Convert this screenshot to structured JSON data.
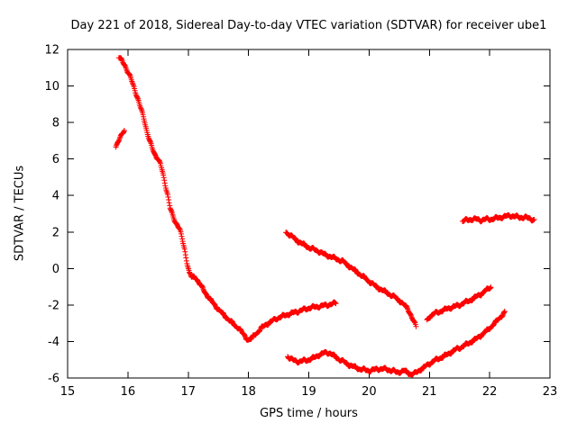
{
  "chart_data": {
    "type": "scatter",
    "marker": "plus",
    "color": "#ff0000",
    "title": "Day 221 of 2018, Sidereal Day-to-day VTEC variation (SDTVAR) for receiver ube1",
    "xlabel": "GPS time / hours",
    "ylabel": "SDTVAR / TECUs",
    "xlim": [
      15,
      23
    ],
    "ylim": [
      -6,
      12
    ],
    "xticks": [
      15,
      16,
      17,
      18,
      19,
      20,
      21,
      22,
      23
    ],
    "yticks": [
      -6,
      -4,
      -2,
      0,
      2,
      4,
      6,
      8,
      10,
      12
    ],
    "grid": false,
    "legend": "none",
    "series": [
      {
        "name": "detached-upper-arc",
        "points": [
          [
            15.8,
            6.7
          ],
          [
            15.84,
            6.95
          ],
          [
            15.88,
            7.2
          ],
          [
            15.91,
            7.4
          ],
          [
            15.94,
            7.6
          ]
        ]
      },
      {
        "name": "main-descent-arc",
        "points": [
          [
            15.85,
            11.55
          ],
          [
            15.9,
            11.4
          ],
          [
            15.95,
            11.15
          ],
          [
            16.0,
            10.75
          ],
          [
            16.05,
            10.4
          ],
          [
            16.1,
            9.95
          ],
          [
            16.15,
            9.45
          ],
          [
            16.2,
            8.9
          ],
          [
            16.25,
            8.4
          ],
          [
            16.28,
            8.05
          ],
          [
            16.32,
            7.45
          ],
          [
            16.36,
            7.0
          ],
          [
            16.4,
            6.6
          ],
          [
            16.45,
            6.25
          ],
          [
            16.5,
            6.0
          ],
          [
            16.54,
            5.7
          ],
          [
            16.58,
            5.2
          ],
          [
            16.62,
            4.6
          ],
          [
            16.66,
            4.05
          ],
          [
            16.7,
            3.3
          ],
          [
            16.74,
            2.9
          ],
          [
            16.78,
            2.6
          ],
          [
            16.82,
            2.4
          ],
          [
            16.86,
            2.15
          ],
          [
            16.9,
            1.6
          ],
          [
            16.94,
            1.05
          ],
          [
            16.98,
            0.35
          ],
          [
            17.02,
            -0.25
          ],
          [
            17.06,
            -0.5
          ],
          [
            17.1,
            -0.45
          ],
          [
            17.14,
            -0.55
          ],
          [
            17.18,
            -0.8
          ],
          [
            17.25,
            -1.15
          ],
          [
            17.32,
            -1.5
          ],
          [
            17.4,
            -1.85
          ],
          [
            17.48,
            -2.15
          ],
          [
            17.56,
            -2.45
          ],
          [
            17.64,
            -2.7
          ],
          [
            17.72,
            -2.95
          ],
          [
            17.78,
            -3.15
          ],
          [
            17.84,
            -3.25
          ],
          [
            17.9,
            -3.55
          ],
          [
            17.96,
            -3.8
          ],
          [
            18.0,
            -3.9
          ],
          [
            18.05,
            -3.85
          ],
          [
            18.1,
            -3.65
          ],
          [
            18.16,
            -3.45
          ],
          [
            18.22,
            -3.25
          ],
          [
            18.3,
            -3.05
          ],
          [
            18.38,
            -2.9
          ],
          [
            18.46,
            -2.75
          ],
          [
            18.54,
            -2.65
          ],
          [
            18.62,
            -2.55
          ],
          [
            18.72,
            -2.45
          ],
          [
            18.82,
            -2.35
          ],
          [
            18.92,
            -2.25
          ],
          [
            19.02,
            -2.15
          ],
          [
            19.12,
            -2.1
          ],
          [
            19.22,
            -2.05
          ],
          [
            19.3,
            -2.0
          ],
          [
            19.38,
            -1.95
          ],
          [
            19.45,
            -1.9
          ]
        ]
      },
      {
        "name": "middle-descent-arc",
        "points": [
          [
            18.62,
            2.0
          ],
          [
            18.68,
            1.85
          ],
          [
            18.76,
            1.65
          ],
          [
            18.84,
            1.45
          ],
          [
            18.92,
            1.3
          ],
          [
            19.0,
            1.15
          ],
          [
            19.08,
            1.05
          ],
          [
            19.16,
            0.95
          ],
          [
            19.24,
            0.8
          ],
          [
            19.32,
            0.7
          ],
          [
            19.4,
            0.6
          ],
          [
            19.48,
            0.5
          ],
          [
            19.56,
            0.4
          ],
          [
            19.64,
            0.2
          ],
          [
            19.72,
            0.0
          ],
          [
            19.8,
            -0.2
          ],
          [
            19.88,
            -0.4
          ],
          [
            19.96,
            -0.6
          ],
          [
            20.04,
            -0.8
          ],
          [
            20.12,
            -1.0
          ],
          [
            20.2,
            -1.15
          ],
          [
            20.28,
            -1.3
          ],
          [
            20.36,
            -1.45
          ],
          [
            20.44,
            -1.6
          ],
          [
            20.52,
            -1.8
          ],
          [
            20.58,
            -2.0
          ],
          [
            20.64,
            -2.2
          ],
          [
            20.68,
            -2.45
          ],
          [
            20.72,
            -2.75
          ],
          [
            20.76,
            -3.05
          ],
          [
            20.78,
            -3.2
          ]
        ]
      },
      {
        "name": "right-rising-arc",
        "points": [
          [
            20.96,
            -2.85
          ],
          [
            21.0,
            -2.65
          ],
          [
            21.06,
            -2.5
          ],
          [
            21.14,
            -2.4
          ],
          [
            21.22,
            -2.3
          ],
          [
            21.3,
            -2.2
          ],
          [
            21.4,
            -2.1
          ],
          [
            21.5,
            -2.0
          ],
          [
            21.6,
            -1.85
          ],
          [
            21.7,
            -1.7
          ],
          [
            21.8,
            -1.5
          ],
          [
            21.88,
            -1.35
          ],
          [
            21.96,
            -1.15
          ],
          [
            22.02,
            -1.0
          ]
        ]
      },
      {
        "name": "bottom-valley-arc",
        "points": [
          [
            18.65,
            -4.8
          ],
          [
            18.7,
            -4.95
          ],
          [
            18.76,
            -5.05
          ],
          [
            18.84,
            -5.1
          ],
          [
            18.92,
            -5.05
          ],
          [
            19.0,
            -5.0
          ],
          [
            19.08,
            -4.9
          ],
          [
            19.16,
            -4.75
          ],
          [
            19.24,
            -4.65
          ],
          [
            19.3,
            -4.6
          ],
          [
            19.36,
            -4.65
          ],
          [
            19.44,
            -4.85
          ],
          [
            19.52,
            -5.0
          ],
          [
            19.6,
            -5.15
          ],
          [
            19.68,
            -5.3
          ],
          [
            19.76,
            -5.4
          ],
          [
            19.84,
            -5.5
          ],
          [
            19.92,
            -5.55
          ],
          [
            20.0,
            -5.6
          ],
          [
            20.08,
            -5.55
          ],
          [
            20.16,
            -5.5
          ],
          [
            20.24,
            -5.5
          ],
          [
            20.32,
            -5.55
          ],
          [
            20.4,
            -5.6
          ],
          [
            20.46,
            -5.7
          ],
          [
            20.52,
            -5.65
          ],
          [
            20.58,
            -5.6
          ],
          [
            20.64,
            -5.7
          ],
          [
            20.7,
            -5.8
          ],
          [
            20.76,
            -5.75
          ],
          [
            20.82,
            -5.6
          ],
          [
            20.9,
            -5.45
          ],
          [
            20.98,
            -5.25
          ],
          [
            21.06,
            -5.1
          ],
          [
            21.14,
            -4.95
          ],
          [
            21.22,
            -4.85
          ],
          [
            21.3,
            -4.7
          ],
          [
            21.38,
            -4.55
          ],
          [
            21.46,
            -4.4
          ],
          [
            21.54,
            -4.3
          ],
          [
            21.62,
            -4.15
          ],
          [
            21.7,
            -4.0
          ],
          [
            21.78,
            -3.85
          ],
          [
            21.86,
            -3.65
          ],
          [
            21.94,
            -3.45
          ],
          [
            22.02,
            -3.2
          ],
          [
            22.1,
            -2.95
          ],
          [
            22.18,
            -2.65
          ],
          [
            22.25,
            -2.4
          ]
        ]
      },
      {
        "name": "top-right-flat-arc",
        "points": [
          [
            21.55,
            2.6
          ],
          [
            21.62,
            2.65
          ],
          [
            21.7,
            2.7
          ],
          [
            21.78,
            2.7
          ],
          [
            21.86,
            2.65
          ],
          [
            21.94,
            2.7
          ],
          [
            22.02,
            2.7
          ],
          [
            22.1,
            2.75
          ],
          [
            22.18,
            2.8
          ],
          [
            22.26,
            2.85
          ],
          [
            22.34,
            2.9
          ],
          [
            22.42,
            2.85
          ],
          [
            22.5,
            2.8
          ],
          [
            22.58,
            2.8
          ],
          [
            22.66,
            2.75
          ],
          [
            22.74,
            2.65
          ]
        ]
      }
    ]
  }
}
